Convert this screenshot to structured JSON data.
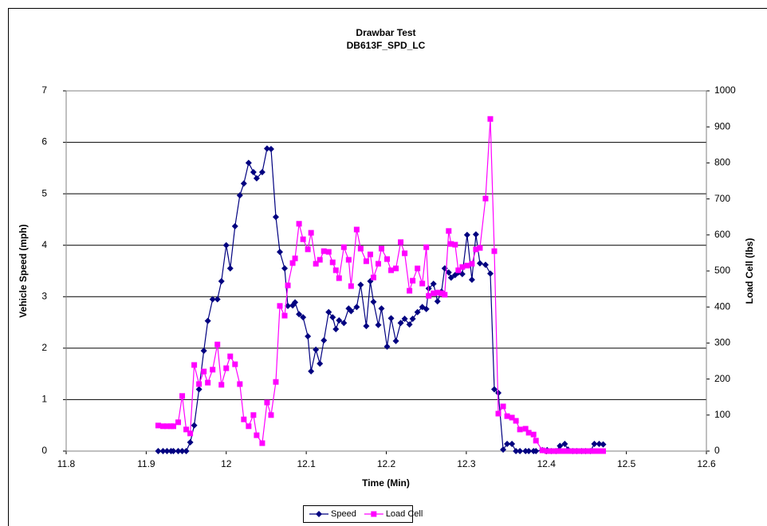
{
  "chart_data": {
    "type": "line",
    "title": "Drawbar Test",
    "subtitle": "DB613F_SPD_LC",
    "x_label": "Time (Min)",
    "y_label": "Vehicle Speed (mph)",
    "y2_label": "Load Cell (lbs)",
    "xlim": [
      11.8,
      12.6
    ],
    "xticks": [
      11.8,
      11.9,
      12,
      12.1,
      12.2,
      12.3,
      12.4,
      12.5,
      12.6
    ],
    "ylim": [
      0,
      7
    ],
    "yticks": [
      0,
      1,
      2,
      3,
      4,
      5,
      6,
      7
    ],
    "y2lim": [
      0,
      1000
    ],
    "y2ticks": [
      0,
      100,
      200,
      300,
      400,
      500,
      600,
      700,
      800,
      900,
      1000
    ],
    "grid": true,
    "legend": "bottom",
    "x": [
      11.915,
      11.921,
      11.926,
      11.931,
      11.934,
      11.94,
      11.945,
      11.95,
      11.955,
      11.96,
      11.966,
      11.972,
      11.977,
      11.983,
      11.989,
      11.994,
      12.0,
      12.005,
      12.011,
      12.017,
      12.022,
      12.028,
      12.034,
      12.038,
      12.045,
      12.051,
      12.056,
      12.062,
      12.067,
      12.073,
      12.077,
      12.083,
      12.086,
      12.091,
      12.096,
      12.102,
      12.106,
      12.112,
      12.117,
      12.122,
      12.128,
      12.133,
      12.137,
      12.141,
      12.147,
      12.153,
      12.156,
      12.163,
      12.168,
      12.175,
      12.18,
      12.184,
      12.19,
      12.194,
      12.201,
      12.206,
      12.212,
      12.218,
      12.223,
      12.229,
      12.233,
      12.239,
      12.245,
      12.25,
      12.253,
      12.259,
      12.264,
      12.269,
      12.273,
      12.278,
      12.281,
      12.286,
      12.29,
      12.295,
      12.301,
      12.307,
      12.312,
      12.317,
      12.324,
      12.33,
      12.335,
      12.34,
      12.346,
      12.351,
      12.357,
      12.362,
      12.367,
      12.374,
      12.378,
      12.384,
      12.387,
      12.395,
      12.401,
      12.406,
      12.412,
      12.417,
      12.423,
      12.427,
      12.433,
      12.438,
      12.444,
      12.449,
      12.455,
      12.46,
      12.466,
      12.471
    ],
    "series": [
      {
        "name": "Speed",
        "color": "#000080",
        "marker": "diamond",
        "values": [
          0,
          0,
          0,
          0,
          0,
          0,
          0,
          0,
          0.17,
          0.5,
          1.2,
          1.95,
          2.53,
          2.95,
          2.95,
          3.3,
          4.0,
          3.55,
          4.37,
          4.97,
          5.2,
          5.6,
          5.42,
          5.3,
          5.42,
          5.88,
          5.87,
          4.55,
          3.87,
          3.55,
          2.82,
          2.83,
          2.89,
          2.66,
          2.6,
          2.23,
          1.55,
          1.97,
          1.7,
          2.15,
          2.7,
          2.6,
          2.37,
          2.54,
          2.49,
          2.77,
          2.72,
          2.8,
          3.23,
          2.43,
          3.3,
          2.9,
          2.45,
          2.77,
          2.03,
          2.58,
          2.14,
          2.49,
          2.57,
          2.46,
          2.57,
          2.7,
          2.8,
          2.76,
          3.16,
          3.25,
          2.91,
          3.1,
          3.55,
          3.47,
          3.37,
          3.42,
          3.47,
          3.44,
          4.2,
          3.33,
          4.21,
          3.65,
          3.62,
          3.45,
          1.2,
          1.13,
          0.03,
          0.14,
          0.14,
          0,
          0,
          0,
          0,
          0,
          0,
          0.02,
          0.02,
          0,
          0,
          0.1,
          0.14,
          0.03,
          0,
          0,
          0,
          0,
          0,
          0.14,
          0.14,
          0.13
        ]
      },
      {
        "name": "Load Cell",
        "color": "#FF00FF",
        "marker": "square",
        "axis": "y2",
        "values": [
          71,
          69,
          69,
          69,
          69,
          80,
          153,
          60,
          49,
          239,
          186,
          221,
          190,
          226,
          296,
          184,
          230,
          263,
          241,
          186,
          88,
          69,
          100,
          44,
          22,
          135,
          100,
          192,
          403,
          376,
          460,
          522,
          535,
          631,
          588,
          560,
          606,
          520,
          531,
          555,
          553,
          524,
          502,
          480,
          566,
          531,
          458,
          615,
          562,
          527,
          546,
          482,
          520,
          562,
          533,
          502,
          507,
          580,
          549,
          445,
          473,
          507,
          465,
          566,
          431,
          438,
          440,
          438,
          434,
          611,
          575,
          573,
          502,
          511,
          515,
          520,
          560,
          564,
          701,
          922,
          555,
          104,
          124,
          97,
          93,
          84,
          60,
          62,
          51,
          46,
          29,
          2,
          0,
          0,
          0,
          0,
          0,
          0,
          0,
          0,
          0,
          0,
          0,
          0,
          0,
          0
        ]
      }
    ]
  }
}
